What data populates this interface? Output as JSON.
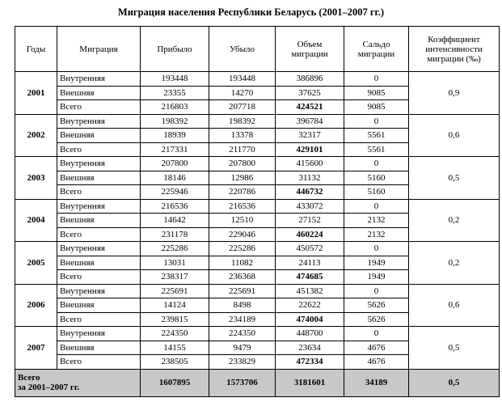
{
  "title": "Миграция населения Республики Беларусь (2001–2007 гг.)",
  "table": {
    "header": [
      "Годы",
      "Миграция",
      "Прибыло",
      "Убыло",
      "Объем миграции",
      "Сальдо миграции",
      "Коэффициент интенсивности миграции (‰)"
    ],
    "years": [
      {
        "year": "2001",
        "coefficient": "0,9",
        "rows": [
          [
            "Внутренняя",
            193448,
            193448,
            386896,
            0
          ],
          [
            "Внешняя",
            23355,
            14270,
            37625,
            9085
          ],
          [
            "Всего",
            216803,
            207718,
            424521,
            9085
          ]
        ]
      },
      {
        "year": "2002",
        "coefficient": "0,6",
        "rows": [
          [
            "Внутренняя",
            198392,
            198392,
            396784,
            0
          ],
          [
            "Внешняя",
            18939,
            13378,
            32317,
            5561
          ],
          [
            "Всего",
            217331,
            211770,
            429101,
            5561
          ]
        ]
      },
      {
        "year": "2003",
        "coefficient": "0,5",
        "rows": [
          [
            "Внутренняя",
            207800,
            207800,
            415600,
            0
          ],
          [
            "Внешняя",
            18146,
            12986,
            31132,
            5160
          ],
          [
            "Всего",
            225946,
            220786,
            446732,
            5160
          ]
        ]
      },
      {
        "year": "2004",
        "coefficient": "0,2",
        "rows": [
          [
            "Внутренняя",
            216536,
            216536,
            433072,
            0
          ],
          [
            "Внешняя",
            14642,
            12510,
            27152,
            2132
          ],
          [
            "Всего",
            231178,
            229046,
            460224,
            2132
          ]
        ]
      },
      {
        "year": "2005",
        "coefficient": "0,2",
        "rows": [
          [
            "Внутренняя",
            225286,
            225286,
            450572,
            0
          ],
          [
            "Внешняя",
            13031,
            11082,
            24113,
            1949
          ],
          [
            "Всего",
            238317,
            236368,
            474685,
            1949
          ]
        ]
      },
      {
        "year": "2006",
        "coefficient": "0,6",
        "rows": [
          [
            "Внутренняя",
            225691,
            225691,
            451382,
            0
          ],
          [
            "Внешняя",
            14124,
            8498,
            22622,
            5626
          ],
          [
            "Всего",
            239815,
            234189,
            474004,
            5626
          ]
        ]
      },
      {
        "year": "2007",
        "coefficient": "0,5",
        "rows": [
          [
            "Внутренняя",
            224350,
            224350,
            448700,
            0
          ],
          [
            "Внешняя",
            14155,
            9479,
            23634,
            4676
          ],
          [
            "Всего",
            238505,
            233829,
            472334,
            4676
          ]
        ]
      }
    ],
    "total": {
      "label": [
        "Всего",
        "за 2001–2007 гг."
      ],
      "values": [
        1607895,
        1573706,
        3181601,
        34189,
        "0,5"
      ]
    }
  }
}
